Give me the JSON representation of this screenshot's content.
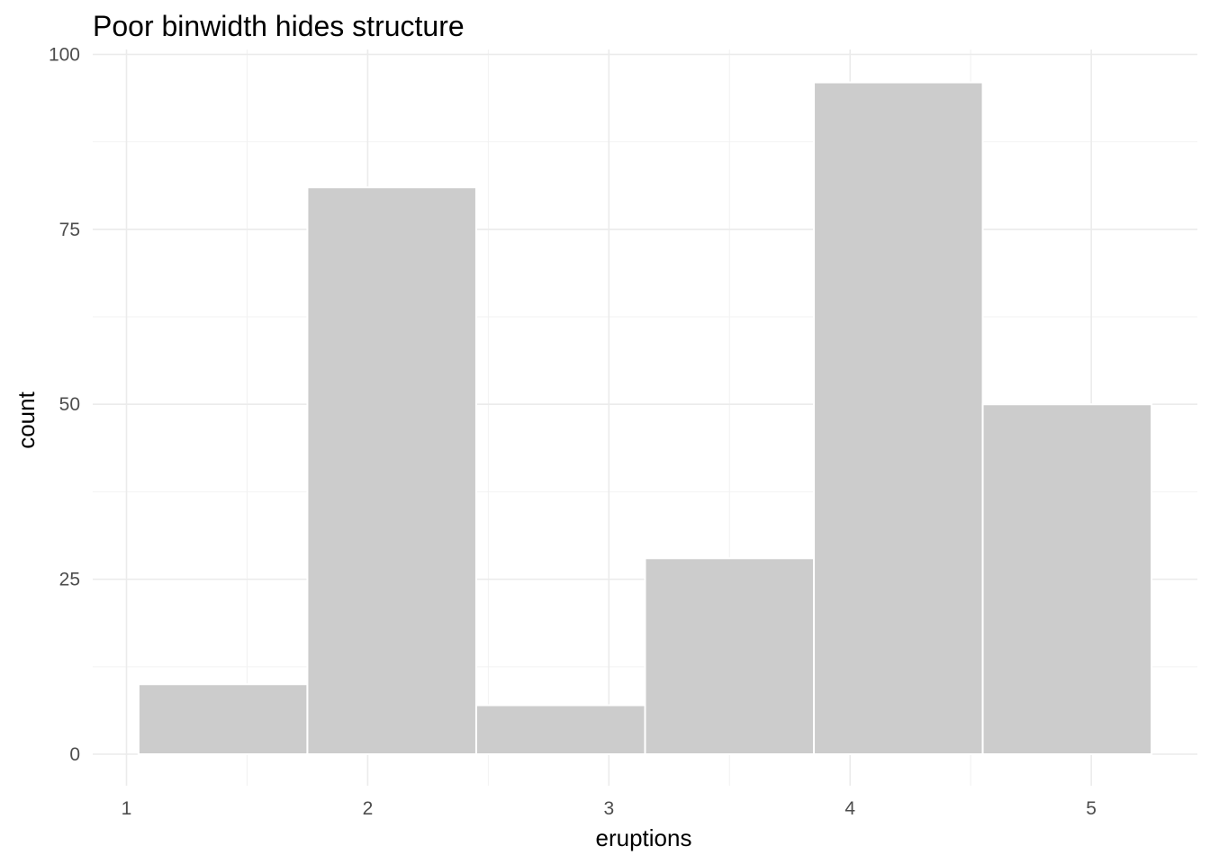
{
  "chart_data": {
    "type": "bar",
    "title": "Poor binwidth hides structure",
    "xlabel": "eruptions",
    "ylabel": "count",
    "bins": [
      {
        "start": 1.05,
        "end": 1.75,
        "count": 10
      },
      {
        "start": 1.75,
        "end": 2.45,
        "count": 81
      },
      {
        "start": 2.45,
        "end": 3.15,
        "count": 7
      },
      {
        "start": 3.15,
        "end": 3.85,
        "count": 28
      },
      {
        "start": 3.85,
        "end": 4.55,
        "count": 96
      },
      {
        "start": 4.55,
        "end": 5.25,
        "count": 50
      }
    ],
    "xlim": [
      0.86,
      5.44
    ],
    "ylim": [
      -4.5,
      100.7
    ],
    "x_ticks": [
      1,
      2,
      3,
      4,
      5
    ],
    "x_tick_labels": [
      "1",
      "2",
      "3",
      "4",
      "5"
    ],
    "y_ticks": [
      0,
      25,
      50,
      75,
      100
    ],
    "y_tick_labels": [
      "0",
      "25",
      "50",
      "75",
      "100"
    ],
    "grid": true,
    "bar_color": "#cccccc",
    "bar_outline": "#ffffff",
    "grid_color": "#ebebeb"
  }
}
